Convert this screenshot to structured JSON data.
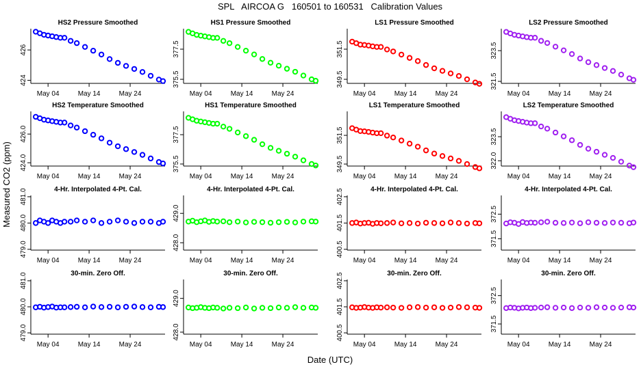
{
  "title": "SPL   AIRCOA G   160501 to 160531   Calibration Values",
  "x_label": "Date (UTC)",
  "y_label": "Measured CO2 (ppm)",
  "chart_data": [
    {
      "type": "scatter",
      "title": "HS2 Pressure Smoothed",
      "color": "#0000ff",
      "x": [
        1,
        2,
        3,
        4,
        5,
        6,
        7,
        8,
        9.5,
        11,
        13,
        15,
        17,
        19,
        21,
        23,
        25,
        27,
        29,
        31,
        32
      ],
      "values": [
        427.2,
        427.1,
        427.0,
        426.95,
        426.9,
        426.85,
        426.8,
        426.8,
        426.6,
        426.45,
        426.2,
        425.95,
        425.7,
        425.4,
        425.15,
        424.95,
        424.75,
        424.55,
        424.3,
        424.05,
        423.95
      ],
      "xlim": [
        -0.2,
        32.5
      ],
      "xticks": [
        {
          "value": 4,
          "label": "May 04"
        },
        {
          "value": 14,
          "label": "May 14"
        },
        {
          "value": 24,
          "label": "May 24"
        }
      ],
      "ylim": [
        423.8,
        427.4
      ],
      "yticks": [
        424,
        426
      ]
    },
    {
      "type": "scatter",
      "title": "HS1 Pressure Smoothed",
      "color": "#00ff00",
      "x": [
        1,
        2,
        3,
        4,
        5,
        6,
        7,
        8,
        9.5,
        11,
        13,
        15,
        17,
        19,
        21,
        23,
        25,
        27,
        29,
        31,
        32
      ],
      "values": [
        378.65,
        378.55,
        378.45,
        378.4,
        378.35,
        378.3,
        378.25,
        378.25,
        378.05,
        377.9,
        377.65,
        377.4,
        377.15,
        376.85,
        376.6,
        376.4,
        376.2,
        376.0,
        375.75,
        375.5,
        375.4
      ],
      "xlim": [
        -0.2,
        32.5
      ],
      "xticks": [
        {
          "value": 4,
          "label": "May 04"
        },
        {
          "value": 14,
          "label": "May 14"
        },
        {
          "value": 24,
          "label": "May 24"
        }
      ],
      "ylim": [
        375.23,
        378.86
      ],
      "yticks": [
        375.5,
        377.5
      ]
    },
    {
      "type": "scatter",
      "title": "LS1 Pressure Smoothed",
      "color": "#ff0000",
      "x": [
        1,
        2,
        3,
        4,
        5,
        6,
        7,
        8,
        9.5,
        11,
        13,
        15,
        17,
        19,
        21,
        23,
        25,
        27,
        29,
        31,
        32
      ],
      "values": [
        352.0,
        351.9,
        351.8,
        351.78,
        351.74,
        351.69,
        351.65,
        351.65,
        351.48,
        351.35,
        351.14,
        350.92,
        350.71,
        350.45,
        350.23,
        350.06,
        349.89,
        349.72,
        349.5,
        349.29,
        349.2
      ],
      "xlim": [
        -0.2,
        32.5
      ],
      "xticks": [
        {
          "value": 4,
          "label": "May 04"
        },
        {
          "value": 14,
          "label": "May 14"
        },
        {
          "value": 24,
          "label": "May 24"
        }
      ],
      "ylim": [
        349.23,
        352.86
      ],
      "yticks": [
        349.5,
        351.5
      ]
    },
    {
      "type": "scatter",
      "title": "LS2 Pressure Smoothed",
      "color": "#a020f0",
      "x": [
        1,
        2,
        3,
        4,
        5,
        6,
        7,
        8,
        9.5,
        11,
        13,
        15,
        17,
        19,
        21,
        23,
        25,
        27,
        29,
        31,
        32
      ],
      "values": [
        324.72,
        324.62,
        324.53,
        324.48,
        324.43,
        324.38,
        324.34,
        324.34,
        324.14,
        324.0,
        323.76,
        323.52,
        323.28,
        322.99,
        322.75,
        322.56,
        322.37,
        322.18,
        321.94,
        321.7,
        321.6
      ],
      "xlim": [
        -0.2,
        32.5
      ],
      "xticks": [
        {
          "value": 4,
          "label": "May 04"
        },
        {
          "value": 14,
          "label": "May 14"
        },
        {
          "value": 24,
          "label": "May 24"
        }
      ],
      "ylim": [
        321.37,
        324.93
      ],
      "yticks": [
        321.5,
        323.5
      ]
    },
    {
      "type": "scatter",
      "title": "HS2 Temperature Smoothed",
      "color": "#0000ff",
      "x": [
        1,
        2,
        3,
        4,
        5,
        6,
        7,
        8,
        9.5,
        11,
        13,
        15,
        17,
        19,
        21,
        23,
        25,
        27,
        29,
        31,
        32
      ],
      "values": [
        427.2,
        427.1,
        427.0,
        426.95,
        426.9,
        426.85,
        426.8,
        426.8,
        426.6,
        426.45,
        426.2,
        425.95,
        425.7,
        425.4,
        425.15,
        424.95,
        424.75,
        424.55,
        424.3,
        424.05,
        423.95
      ],
      "xlim": [
        -0.2,
        32.5
      ],
      "xticks": [
        {
          "value": 4,
          "label": "May 04"
        },
        {
          "value": 14,
          "label": "May 14"
        },
        {
          "value": 24,
          "label": "May 24"
        }
      ],
      "ylim": [
        423.77,
        427.58
      ],
      "yticks": [
        {
          "value": 424,
          "label": "424.0"
        },
        {
          "value": 426,
          "label": "426.0"
        }
      ]
    },
    {
      "type": "scatter",
      "title": "HS1 Temperature Smoothed",
      "color": "#00ff00",
      "x": [
        1,
        2,
        3,
        4,
        5,
        6,
        7,
        8,
        9.5,
        11,
        13,
        15,
        17,
        19,
        21,
        23,
        25,
        27,
        29,
        31,
        32
      ],
      "values": [
        378.65,
        378.55,
        378.45,
        378.4,
        378.35,
        378.3,
        378.25,
        378.25,
        378.05,
        377.9,
        377.65,
        377.4,
        377.15,
        376.85,
        376.6,
        376.4,
        376.2,
        376.0,
        375.75,
        375.5,
        375.4
      ],
      "xlim": [
        -0.2,
        32.5
      ],
      "xticks": [
        {
          "value": 4,
          "label": "May 04"
        },
        {
          "value": 14,
          "label": "May 14"
        },
        {
          "value": 24,
          "label": "May 24"
        }
      ],
      "ylim": [
        375.36,
        379.09
      ],
      "yticks": [
        375.5,
        377.5
      ]
    },
    {
      "type": "scatter",
      "title": "LS1 Temperature Smoothed",
      "color": "#ff0000",
      "x": [
        1,
        2,
        3,
        4,
        5,
        6,
        7,
        8,
        9.5,
        11,
        13,
        15,
        17,
        19,
        21,
        23,
        25,
        27,
        29,
        31,
        32
      ],
      "values": [
        352.0,
        351.9,
        351.8,
        351.78,
        351.74,
        351.69,
        351.65,
        351.65,
        351.48,
        351.35,
        351.14,
        350.92,
        350.71,
        350.45,
        350.23,
        350.06,
        349.89,
        349.72,
        349.5,
        349.29,
        349.2
      ],
      "xlim": [
        -0.2,
        32.5
      ],
      "xticks": [
        {
          "value": 4,
          "label": "May 04"
        },
        {
          "value": 14,
          "label": "May 14"
        },
        {
          "value": 24,
          "label": "May 24"
        }
      ],
      "ylim": [
        349.36,
        353.17
      ],
      "yticks": [
        349.5,
        351.5
      ]
    },
    {
      "type": "scatter",
      "title": "LS2 Temperature Smoothed",
      "color": "#a020f0",
      "x": [
        1,
        2,
        3,
        4,
        5,
        6,
        7,
        8,
        9.5,
        11,
        13,
        15,
        17,
        19,
        21,
        23,
        25,
        27,
        29,
        31,
        32
      ],
      "values": [
        324.72,
        324.62,
        324.53,
        324.48,
        324.43,
        324.38,
        324.34,
        324.34,
        324.14,
        324.0,
        323.76,
        323.52,
        323.28,
        322.99,
        322.75,
        322.56,
        322.37,
        322.18,
        321.94,
        321.7,
        321.6
      ],
      "xlim": [
        -0.2,
        32.5
      ],
      "xticks": [
        {
          "value": 4,
          "label": "May 04"
        },
        {
          "value": 14,
          "label": "May 14"
        },
        {
          "value": 24,
          "label": "May 24"
        }
      ],
      "ylim": [
        321.67,
        325.08
      ],
      "yticks": [
        {
          "value": 322,
          "label": "322.0"
        },
        323.5
      ]
    },
    {
      "type": "scatter",
      "title": "4-Hr. Interpolated 4-Pt. Cal.",
      "color": "#0000ff",
      "x": [
        1,
        2,
        3,
        4,
        5,
        6,
        7,
        8,
        9.5,
        11,
        13,
        15,
        17,
        19,
        21,
        23,
        25,
        27,
        29,
        31,
        32
      ],
      "values": [
        480.0,
        480.1,
        480.05,
        480.0,
        480.1,
        480.05,
        480.0,
        480.05,
        480.05,
        480.1,
        480.05,
        480.1,
        480.0,
        480.05,
        480.1,
        480.05,
        480.0,
        480.05,
        480.05,
        480.0,
        480.05
      ],
      "xlim": [
        -0.2,
        32.5
      ],
      "xticks": [
        {
          "value": 4,
          "label": "May 04"
        },
        {
          "value": 14,
          "label": "May 14"
        },
        {
          "value": 24,
          "label": "May 24"
        }
      ],
      "ylim": [
        478.97,
        481.05
      ],
      "yticks": [
        {
          "value": 479,
          "label": "479.0"
        },
        {
          "value": 480,
          "label": "480.0"
        },
        {
          "value": 481,
          "label": "481.0"
        }
      ]
    },
    {
      "type": "scatter",
      "title": "4-Hr. Interpolated 4-Pt. Cal.",
      "color": "#00ff00",
      "x": [
        1,
        2,
        3,
        4,
        5,
        6,
        7,
        8,
        9.5,
        11,
        13,
        15,
        17,
        19,
        21,
        23,
        25,
        27,
        29,
        31,
        32
      ],
      "values": [
        428.72,
        428.75,
        428.7,
        428.73,
        428.76,
        428.71,
        428.74,
        428.72,
        428.73,
        428.7,
        428.72,
        428.69,
        428.71,
        428.7,
        428.68,
        428.7,
        428.71,
        428.69,
        428.72,
        428.73,
        428.72
      ],
      "xlim": [
        -0.2,
        32.5
      ],
      "xticks": [
        {
          "value": 4,
          "label": "May 04"
        },
        {
          "value": 14,
          "label": "May 14"
        },
        {
          "value": 24,
          "label": "May 24"
        }
      ],
      "ylim": [
        427.75,
        429.61
      ],
      "yticks": [
        {
          "value": 428,
          "label": "428.0"
        },
        {
          "value": 429,
          "label": "429.0"
        }
      ]
    },
    {
      "type": "scatter",
      "title": "4-Hr. Interpolated 4-Pt. Cal.",
      "color": "#ff0000",
      "x": [
        1,
        2,
        3,
        4,
        5,
        6,
        7,
        8,
        9.5,
        11,
        13,
        15,
        17,
        19,
        21,
        23,
        25,
        27,
        29,
        31,
        32
      ],
      "values": [
        401.5,
        401.52,
        401.48,
        401.5,
        401.51,
        401.47,
        401.5,
        401.49,
        401.5,
        401.52,
        401.49,
        401.5,
        401.48,
        401.51,
        401.5,
        401.49,
        401.52,
        401.5,
        401.48,
        401.5,
        401.49
      ],
      "xlim": [
        -0.2,
        32.5
      ],
      "xticks": [
        {
          "value": 4,
          "label": "May 04"
        },
        {
          "value": 14,
          "label": "May 14"
        },
        {
          "value": 24,
          "label": "May 24"
        }
      ],
      "ylim": [
        400.47,
        402.55
      ],
      "yticks": [
        400.5,
        401.5,
        402.5
      ]
    },
    {
      "type": "scatter",
      "title": "4-Hr. Interpolated 4-Pt. Cal.",
      "color": "#a020f0",
      "x": [
        1,
        2,
        3,
        4,
        5,
        6,
        7,
        8,
        9.5,
        11,
        13,
        15,
        17,
        19,
        21,
        23,
        25,
        27,
        29,
        31,
        32
      ],
      "values": [
        372.12,
        372.17,
        372.15,
        372.1,
        372.18,
        372.14,
        372.16,
        372.15,
        372.17,
        372.19,
        372.15,
        372.14,
        372.16,
        372.13,
        372.17,
        372.15,
        372.14,
        372.16,
        372.15,
        372.13,
        372.16
      ],
      "xlim": [
        -0.2,
        32.5
      ],
      "xticks": [
        {
          "value": 4,
          "label": "May 04"
        },
        {
          "value": 14,
          "label": "May 14"
        },
        {
          "value": 24,
          "label": "May 24"
        }
      ],
      "ylim": [
        371.04,
        373.26
      ],
      "yticks": [
        371.5,
        372.5
      ]
    },
    {
      "type": "scatter",
      "title": "30-min. Zero Off.",
      "color": "#0000ff",
      "x": [
        1,
        2,
        3,
        4,
        5,
        6,
        7,
        8,
        9.5,
        11,
        13,
        15,
        17,
        19,
        21,
        23,
        25,
        27,
        29,
        31,
        32
      ],
      "values": [
        479.98,
        480.0,
        479.97,
        479.99,
        480.01,
        479.97,
        479.98,
        479.98,
        479.99,
        480.0,
        479.98,
        480.01,
        479.99,
        480.0,
        479.98,
        480.0,
        480.01,
        479.99,
        479.98,
        480.0,
        479.99
      ],
      "xlim": [
        -0.2,
        32.5
      ],
      "xticks": [
        {
          "value": 4,
          "label": "May 04"
        },
        {
          "value": 14,
          "label": "May 14"
        },
        {
          "value": 24,
          "label": "May 24"
        }
      ],
      "ylim": [
        478.95,
        481.05
      ],
      "yticks": [
        {
          "value": 479,
          "label": "479.0"
        },
        {
          "value": 480,
          "label": "480.0"
        },
        {
          "value": 481,
          "label": "481.0"
        }
      ]
    },
    {
      "type": "scatter",
      "title": "30-min. Zero Off.",
      "color": "#00ff00",
      "x": [
        1,
        2,
        3,
        4,
        5,
        6,
        7,
        8,
        9.5,
        11,
        13,
        15,
        17,
        19,
        21,
        23,
        25,
        27,
        29,
        31,
        32
      ],
      "values": [
        428.73,
        428.71,
        428.72,
        428.74,
        428.72,
        428.71,
        428.73,
        428.72,
        428.7,
        428.72,
        428.71,
        428.73,
        428.7,
        428.72,
        428.71,
        428.73,
        428.72,
        428.74,
        428.72,
        428.73,
        428.72
      ],
      "xlim": [
        -0.2,
        32.5
      ],
      "xticks": [
        {
          "value": 4,
          "label": "May 04"
        },
        {
          "value": 14,
          "label": "May 14"
        },
        {
          "value": 24,
          "label": "May 24"
        }
      ],
      "ylim": [
        427.94,
        429.56
      ],
      "yticks": [
        {
          "value": 428,
          "label": "428.0"
        },
        {
          "value": 429,
          "label": "429.0"
        }
      ]
    },
    {
      "type": "scatter",
      "title": "30-min. Zero Off.",
      "color": "#ff0000",
      "x": [
        1,
        2,
        3,
        4,
        5,
        6,
        7,
        8,
        9.5,
        11,
        13,
        15,
        17,
        19,
        21,
        23,
        25,
        27,
        29,
        31,
        32
      ],
      "values": [
        401.48,
        401.46,
        401.47,
        401.49,
        401.47,
        401.46,
        401.48,
        401.47,
        401.48,
        401.47,
        401.46,
        401.48,
        401.49,
        401.47,
        401.48,
        401.46,
        401.47,
        401.49,
        401.48,
        401.47,
        401.46
      ],
      "xlim": [
        -0.2,
        32.5
      ],
      "xticks": [
        {
          "value": 4,
          "label": "May 04"
        },
        {
          "value": 14,
          "label": "May 14"
        },
        {
          "value": 24,
          "label": "May 24"
        }
      ],
      "ylim": [
        400.45,
        402.55
      ],
      "yticks": [
        400.5,
        401.5,
        402.5
      ]
    },
    {
      "type": "scatter",
      "title": "30-min. Zero Off.",
      "color": "#a020f0",
      "x": [
        1,
        2,
        3,
        4,
        5,
        6,
        7,
        8,
        9.5,
        11,
        13,
        15,
        17,
        19,
        21,
        23,
        25,
        27,
        29,
        31,
        32
      ],
      "values": [
        372.06,
        372.08,
        372.07,
        372.05,
        372.07,
        372.08,
        372.06,
        372.07,
        372.08,
        372.09,
        372.07,
        372.08,
        372.06,
        372.08,
        372.07,
        372.09,
        372.08,
        372.07,
        372.08,
        372.09,
        372.08
      ],
      "xlim": [
        -0.2,
        32.5
      ],
      "xticks": [
        {
          "value": 4,
          "label": "May 04"
        },
        {
          "value": 14,
          "label": "May 14"
        },
        {
          "value": 24,
          "label": "May 24"
        }
      ],
      "ylim": [
        371.14,
        373.07
      ],
      "yticks": [
        371.5,
        372.5
      ]
    }
  ]
}
